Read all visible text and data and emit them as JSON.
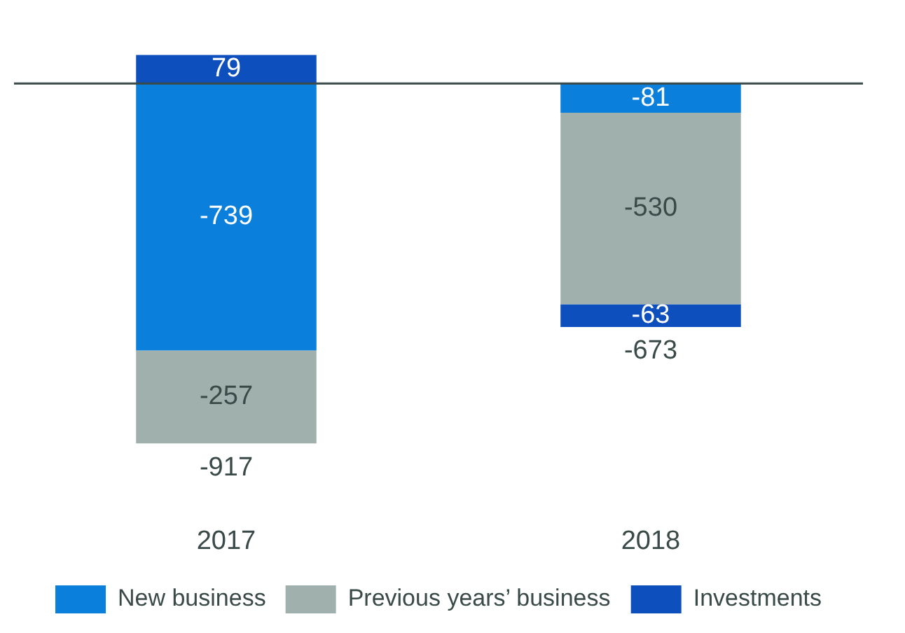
{
  "chart_data": {
    "type": "bar",
    "stacked": true,
    "categories": [
      "2017",
      "2018"
    ],
    "series": [
      {
        "name": "New business",
        "color": "#0a7fdc",
        "values": [
          -739,
          -81
        ]
      },
      {
        "name": "Previous years’ business",
        "color": "#a0b0ac",
        "values": [
          -257,
          -530
        ]
      },
      {
        "name": "Investments",
        "color": "#0d4fbd",
        "values": [
          79,
          -63
        ]
      }
    ],
    "data_labels": true,
    "totals": [
      "-917",
      "-673"
    ],
    "legend": "bottom",
    "grid": false
  }
}
